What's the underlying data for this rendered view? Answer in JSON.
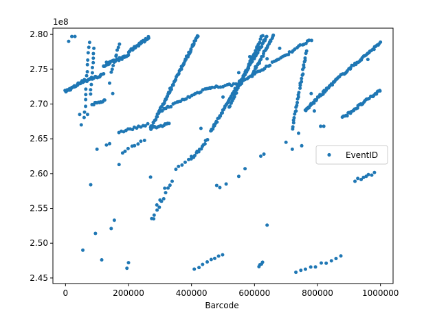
{
  "chart_data": {
    "type": "scatter",
    "xlabel": "Barcode",
    "ylabel": "",
    "y_offset_label": "1e8",
    "xlim": [
      -40000,
      1040000
    ],
    "ylim": [
      244.2,
      280.9
    ],
    "xticks": [
      0,
      200000,
      400000,
      600000,
      800000,
      1000000
    ],
    "xtick_labels": [
      "0",
      "200000",
      "400000",
      "600000",
      "800000",
      "1000000"
    ],
    "yticks": [
      245,
      250,
      255,
      260,
      265,
      270,
      275,
      280
    ],
    "ytick_labels": [
      "2.45",
      "2.50",
      "2.55",
      "2.60",
      "2.65",
      "2.70",
      "2.75",
      "2.80"
    ],
    "grid": false,
    "legend_position": "center-right",
    "series": [
      {
        "name": "EventID",
        "color": "#1f77b4",
        "marker": "circle",
        "trend_segments": [
          {
            "from": [
              0,
              271.8
            ],
            "to": [
              40000,
              272.8
            ],
            "n": 22
          },
          {
            "from": [
              40000,
              273.0
            ],
            "to": [
              120000,
              274.2
            ],
            "n": 28
          },
          {
            "from": [
              120000,
              275.5
            ],
            "to": [
              200000,
              277.0
            ],
            "n": 30
          },
          {
            "from": [
              200000,
              277.5
            ],
            "to": [
              265000,
              279.6
            ],
            "n": 30
          },
          {
            "from": [
              60000,
              268.0
            ],
            "to": [
              75000,
              279.0
            ],
            "n": 14
          },
          {
            "from": [
              80000,
              271.5
            ],
            "to": [
              90000,
              278.0
            ],
            "n": 10
          },
          {
            "from": [
              145000,
              274.5
            ],
            "to": [
              170000,
              278.5
            ],
            "n": 10
          },
          {
            "from": [
              85000,
              270.0
            ],
            "to": [
              125000,
              270.5
            ],
            "n": 12
          },
          {
            "from": [
              270000,
              266.5
            ],
            "to": [
              420000,
              279.8
            ],
            "n": 75
          },
          {
            "from": [
              300000,
              269.0
            ],
            "to": [
              460000,
              272.5
            ],
            "n": 28
          },
          {
            "from": [
              460000,
              272.3
            ],
            "to": [
              560000,
              273.0
            ],
            "n": 16
          },
          {
            "from": [
              460000,
              266.0
            ],
            "to": [
              640000,
              279.8
            ],
            "n": 80
          },
          {
            "from": [
              520000,
              269.5
            ],
            "to": [
              625000,
              279.8
            ],
            "n": 40
          },
          {
            "from": [
              590000,
              274.0
            ],
            "to": [
              660000,
              279.8
            ],
            "n": 30
          },
          {
            "from": [
              560000,
              273.2
            ],
            "to": [
              780000,
              279.3
            ],
            "n": 40
          },
          {
            "from": [
              720000,
              266.5
            ],
            "to": [
              765000,
              277.5
            ],
            "n": 30
          },
          {
            "from": [
              760000,
              269.0
            ],
            "to": [
              860000,
              273.5
            ],
            "n": 40
          },
          {
            "from": [
              860000,
              273.5
            ],
            "to": [
              1000000,
              278.8
            ],
            "n": 40
          },
          {
            "from": [
              880000,
              268.0
            ],
            "to": [
              1000000,
              272.0
            ],
            "n": 35
          },
          {
            "from": [
              270000,
              266.6
            ],
            "to": [
              330000,
              267.1
            ],
            "n": 14
          },
          {
            "from": [
              170000,
              266.0
            ],
            "to": [
              260000,
              267.0
            ],
            "n": 14
          },
          {
            "from": [
              400000,
              262.0
            ],
            "to": [
              450000,
              264.8
            ],
            "n": 14
          },
          {
            "from": [
              180000,
              263.0
            ],
            "to": [
              250000,
              264.8
            ],
            "n": 8
          },
          {
            "from": [
              275000,
              253.5
            ],
            "to": [
              340000,
              259.0
            ],
            "n": 10
          },
          {
            "from": [
              350000,
              260.5
            ],
            "to": [
              400000,
              262.5
            ],
            "n": 6
          },
          {
            "from": [
              920000,
              259.0
            ],
            "to": [
              980000,
              260.0
            ],
            "n": 8
          },
          {
            "from": [
              410000,
              246.2
            ],
            "to": [
              500000,
              248.5
            ],
            "n": 8
          },
          {
            "from": [
              730000,
              245.7
            ],
            "to": [
              875000,
              248.0
            ],
            "n": 10
          },
          {
            "from": [
              615000,
              246.8
            ],
            "to": [
              625000,
              247.2
            ],
            "n": 4
          }
        ],
        "scattered_points": [
          [
            10000,
            279.0
          ],
          [
            20000,
            279.7
          ],
          [
            30000,
            279.7
          ],
          [
            50000,
            267.0
          ],
          [
            55000,
            249.0
          ],
          [
            80000,
            258.4
          ],
          [
            100000,
            263.5
          ],
          [
            95000,
            251.4
          ],
          [
            115000,
            247.6
          ],
          [
            130000,
            264.1
          ],
          [
            140000,
            264.3
          ],
          [
            145000,
            252.1
          ],
          [
            155000,
            253.3
          ],
          [
            170000,
            261.3
          ],
          [
            195000,
            246.4
          ],
          [
            200000,
            247.2
          ],
          [
            270000,
            259.5
          ],
          [
            280000,
            253.5
          ],
          [
            290000,
            255.5
          ],
          [
            300000,
            256.2
          ],
          [
            315000,
            257.9
          ],
          [
            480000,
            258.3
          ],
          [
            490000,
            258.0
          ],
          [
            510000,
            258.5
          ],
          [
            550000,
            259.6
          ],
          [
            570000,
            260.7
          ],
          [
            620000,
            262.5
          ],
          [
            630000,
            262.8
          ],
          [
            640000,
            252.6
          ],
          [
            700000,
            264.5
          ],
          [
            720000,
            263.5
          ],
          [
            740000,
            265.8
          ],
          [
            750000,
            264.0
          ],
          [
            810000,
            266.8
          ],
          [
            820000,
            266.8
          ],
          [
            960000,
            276.4
          ],
          [
            130000,
            276.0
          ],
          [
            140000,
            273.0
          ],
          [
            150000,
            271.5
          ],
          [
            60000,
            273.5
          ],
          [
            45000,
            268.5
          ],
          [
            70000,
            268.5
          ],
          [
            790000,
            269.0
          ],
          [
            780000,
            271.5
          ],
          [
            550000,
            274.5
          ],
          [
            585000,
            276.8
          ],
          [
            640000,
            276.5
          ],
          [
            680000,
            278.0
          ],
          [
            500000,
            271.0
          ],
          [
            430000,
            266.5
          ]
        ]
      }
    ]
  }
}
